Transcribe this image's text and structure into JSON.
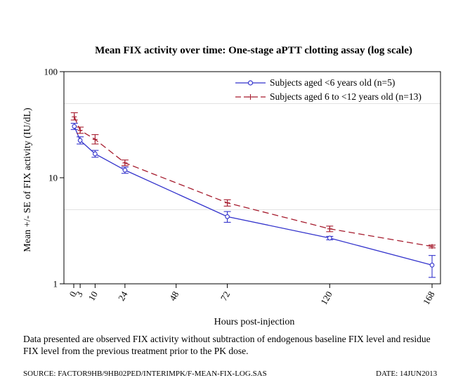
{
  "chart_data": {
    "type": "line",
    "title": "Mean FIX activity over time: One-stage aPTT clotting assay (log scale)",
    "xlabel": "Hours post-injection",
    "ylabel": "Mean +/- SE of FIX activity (IU/dL)",
    "y_scale": "log",
    "ylim": [
      1,
      100
    ],
    "xlim": [
      0,
      168
    ],
    "x_ticks": [
      0,
      3,
      10,
      24,
      48,
      72,
      120,
      168
    ],
    "x_tick_labels": [
      "0",
      "3",
      "10",
      "24",
      "48",
      "72",
      "120",
      "168"
    ],
    "y_ticks": [
      1,
      10,
      100
    ],
    "y_tick_labels": [
      "1",
      "10",
      "100"
    ],
    "grid_y_values": [
      5,
      50
    ],
    "grid": true,
    "legend_position": "top-right",
    "series": [
      {
        "name": "Subjects aged <6 years old (n=5)",
        "color": "#3333cc",
        "marker": "circle",
        "line_style": "solid",
        "x": [
          0.25,
          3,
          10,
          24,
          72,
          120,
          168
        ],
        "y": [
          30.5,
          22.5,
          16.8,
          11.8,
          4.3,
          2.7,
          1.5
        ],
        "err_low": [
          28.5,
          20.8,
          15.6,
          11.0,
          3.8,
          2.6,
          1.15
        ],
        "err_high": [
          32.6,
          24.3,
          18.1,
          12.6,
          4.8,
          2.8,
          1.85
        ]
      },
      {
        "name": "Subjects aged 6 to <12 years old (n=13)",
        "color": "#a61c2e",
        "marker": "plus",
        "line_style": "dashed",
        "x": [
          0.25,
          3,
          10,
          24,
          72,
          120,
          168
        ],
        "y": [
          37.5,
          28.0,
          23.0,
          13.8,
          5.8,
          3.3,
          2.25
        ],
        "err_low": [
          35.0,
          26.2,
          20.8,
          13.0,
          5.4,
          3.1,
          2.18
        ],
        "err_high": [
          41.0,
          30.0,
          25.5,
          14.7,
          6.2,
          3.5,
          2.32
        ]
      }
    ]
  },
  "footnote": "Data presented are observed FIX activity without subtraction of endogenous baseline FIX level and residue FIX level from the previous treatment prior to the PK dose.",
  "source": "SOURCE: FACTOR9HB/9HB02PED/INTERIMPK/F-MEAN-FIX-LOG.SAS",
  "date": "DATE: 14JUN2013"
}
